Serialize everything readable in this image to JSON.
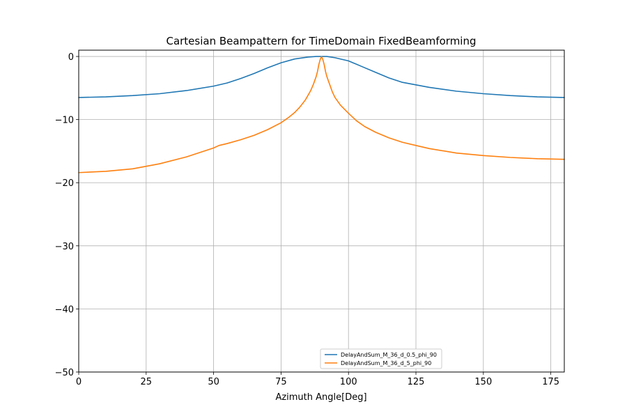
{
  "chart_data": {
    "type": "line",
    "title": "Cartesian Beampattern for TimeDomain FixedBeamforming",
    "xlabel": "Azimuth Angle[Deg]",
    "ylabel": "",
    "xlim": [
      0,
      180
    ],
    "ylim": [
      -50,
      1
    ],
    "xticks": [
      0,
      25,
      50,
      75,
      100,
      125,
      150,
      175
    ],
    "yticks": [
      0,
      -10,
      -20,
      -30,
      -40,
      -50
    ],
    "xtick_labels": [
      "0",
      "25",
      "50",
      "75",
      "100",
      "125",
      "150",
      "175"
    ],
    "ytick_labels": [
      "0",
      "−10",
      "−20",
      "−30",
      "−40",
      "−50"
    ],
    "grid": true,
    "legend_position": "lower-center",
    "series": [
      {
        "name": "DelayAndSum_M_36_d_0.5_phi_90",
        "color": "#1f77b4",
        "x": [
          0,
          10,
          20,
          30,
          40,
          50,
          55,
          60,
          65,
          70,
          75,
          80,
          85,
          88,
          90,
          92,
          95,
          100,
          105,
          110,
          115,
          120,
          125,
          130,
          140,
          150,
          160,
          170,
          180
        ],
        "y": [
          -6.5,
          -6.4,
          -6.2,
          -5.9,
          -5.4,
          -4.7,
          -4.2,
          -3.5,
          -2.7,
          -1.8,
          -1.0,
          -0.4,
          -0.1,
          0,
          0,
          0,
          -0.2,
          -0.7,
          -1.6,
          -2.5,
          -3.4,
          -4.1,
          -4.5,
          -4.9,
          -5.5,
          -5.9,
          -6.2,
          -6.4,
          -6.5
        ]
      },
      {
        "name": "DelayAndSum_M_36_d_5_phi_90",
        "color": "#ff7f0e",
        "x": [
          0,
          10,
          20,
          30,
          40,
          45,
          50,
          52,
          55,
          60,
          65,
          70,
          75,
          78,
          80,
          82,
          84,
          86,
          87,
          88,
          88.5,
          89,
          89.5,
          90,
          90.5,
          91,
          91.5,
          92,
          93,
          94,
          95,
          97,
          100,
          103,
          106,
          110,
          115,
          120,
          125,
          130,
          140,
          150,
          160,
          170,
          180
        ],
        "y": [
          -18.4,
          -18.2,
          -17.8,
          -17.0,
          -15.9,
          -15.2,
          -14.5,
          -14.1,
          -13.8,
          -13.2,
          -12.5,
          -11.6,
          -10.5,
          -9.6,
          -8.9,
          -8.0,
          -6.9,
          -5.4,
          -4.4,
          -3.2,
          -2.4,
          -1.3,
          -0.5,
          0,
          -0.5,
          -1.3,
          -2.4,
          -3.2,
          -4.4,
          -5.6,
          -6.5,
          -7.7,
          -9.0,
          -10.2,
          -11.1,
          -12.0,
          -12.9,
          -13.6,
          -14.1,
          -14.6,
          -15.3,
          -15.7,
          -16.0,
          -16.2,
          -16.3
        ]
      }
    ]
  }
}
